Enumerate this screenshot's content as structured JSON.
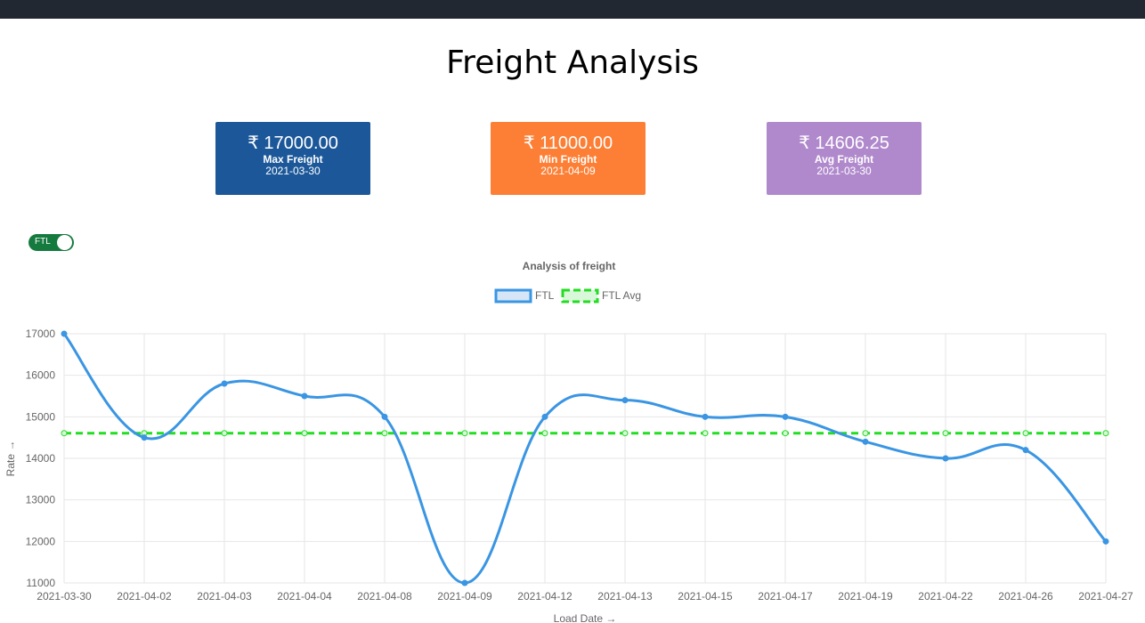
{
  "page": {
    "title": "Freight Analysis"
  },
  "cards": {
    "max": {
      "value": "₹ 17000.00",
      "label": "Max Freight",
      "date": "2021-03-30",
      "color": "#1c5899"
    },
    "min": {
      "value": "₹ 11000.00",
      "label": "Min Freight",
      "date": "2021-04-09",
      "color": "#fd7f35"
    },
    "avg": {
      "value": "₹ 14606.25",
      "label": "Avg Freight",
      "date": "2021-03-30",
      "color": "#b089cc"
    }
  },
  "toggle": {
    "label": "FTL",
    "state": "on"
  },
  "chart_data": {
    "type": "line",
    "title": "Analysis of freight",
    "xlabel": "Load Date →",
    "ylabel": "Rate →",
    "categories": [
      "2021-03-30",
      "2021-04-02",
      "2021-04-03",
      "2021-04-04",
      "2021-04-08",
      "2021-04-09",
      "2021-04-12",
      "2021-04-13",
      "2021-04-15",
      "2021-04-17",
      "2021-04-19",
      "2021-04-22",
      "2021-04-26",
      "2021-04-27"
    ],
    "ylim": [
      11000,
      17000
    ],
    "yticks": [
      11000,
      12000,
      13000,
      14000,
      15000,
      16000,
      17000
    ],
    "grid": true,
    "legend": "top-center",
    "series": [
      {
        "name": "FTL",
        "color": "#3a95e3",
        "style": "solid-smooth",
        "values": [
          17000,
          14500,
          15800,
          15500,
          15000,
          11000,
          15000,
          15400,
          15000,
          15000,
          14400,
          14000,
          14200,
          12000
        ]
      },
      {
        "name": "FTL Avg",
        "color": "#22dd22",
        "style": "dashed",
        "values": [
          14606.25,
          14606.25,
          14606.25,
          14606.25,
          14606.25,
          14606.25,
          14606.25,
          14606.25,
          14606.25,
          14606.25,
          14606.25,
          14606.25,
          14606.25,
          14606.25
        ]
      }
    ]
  }
}
